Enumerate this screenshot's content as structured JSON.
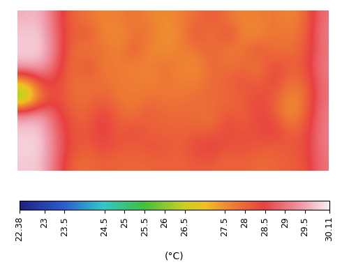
{
  "chart_data": {
    "type": "heatmap",
    "tick_labels": false,
    "cells": [
      [
        29.6,
        29.7,
        28.8,
        28.0,
        27.8,
        27.6,
        27.7,
        27.9,
        27.6,
        27.5,
        27.7,
        27.9,
        28.2,
        27.8,
        27.6,
        27.7,
        27.8,
        27.6,
        27.9,
        29.0
      ],
      [
        29.8,
        29.8,
        28.9,
        28.0,
        28.3,
        27.6,
        27.5,
        27.8,
        27.9,
        27.4,
        27.6,
        28.3,
        27.7,
        28.4,
        27.6,
        27.5,
        27.9,
        27.7,
        28.0,
        29.1
      ],
      [
        29.8,
        29.9,
        29.0,
        27.9,
        27.7,
        27.9,
        27.6,
        28.2,
        27.5,
        27.5,
        27.7,
        27.8,
        28.1,
        27.7,
        27.8,
        28.3,
        27.8,
        27.9,
        28.1,
        29.0
      ],
      [
        29.7,
        29.6,
        28.8,
        27.8,
        28.4,
        27.7,
        27.8,
        27.6,
        27.7,
        27.9,
        27.6,
        27.5,
        28.0,
        27.8,
        28.0,
        27.7,
        28.4,
        28.1,
        28.2,
        29.1
      ],
      [
        27.0,
        28.4,
        28.5,
        27.9,
        27.8,
        27.9,
        27.7,
        27.8,
        27.6,
        27.8,
        27.7,
        27.7,
        27.9,
        28.1,
        28.3,
        28.0,
        28.5,
        27.8,
        28.0,
        29.0
      ],
      [
        25.6,
        27.8,
        28.4,
        27.9,
        27.9,
        28.1,
        27.8,
        27.7,
        27.9,
        27.8,
        27.8,
        27.9,
        28.0,
        27.9,
        28.1,
        28.4,
        28.1,
        27.5,
        27.8,
        29.0
      ],
      [
        29.4,
        29.5,
        28.7,
        28.1,
        28.0,
        28.5,
        28.0,
        27.8,
        28.2,
        27.9,
        28.0,
        27.9,
        27.8,
        28.3,
        28.0,
        28.5,
        28.2,
        27.4,
        28.0,
        29.1
      ],
      [
        29.8,
        29.8,
        28.9,
        28.2,
        28.2,
        28.6,
        28.1,
        28.4,
        28.0,
        28.1,
        28.0,
        28.1,
        28.0,
        28.4,
        28.2,
        28.3,
        28.6,
        28.0,
        28.2,
        29.1
      ],
      [
        29.9,
        29.9,
        29.0,
        28.3,
        28.1,
        28.4,
        28.2,
        28.1,
        28.3,
        28.2,
        28.1,
        28.4,
        28.6,
        28.2,
        28.3,
        28.2,
        28.1,
        28.2,
        28.3,
        29.1
      ],
      [
        29.8,
        29.8,
        28.9,
        28.0,
        27.9,
        28.1,
        28.0,
        28.0,
        28.0,
        28.1,
        28.0,
        28.2,
        28.1,
        28.0,
        28.1,
        27.9,
        28.0,
        28.1,
        28.2,
        29.0
      ]
    ],
    "colorbar_range": [
      22.38,
      30.11
    ],
    "colorbar_ticks": [
      22.38,
      23,
      23.5,
      24.5,
      25,
      25.5,
      26,
      26.5,
      27.5,
      28,
      28.5,
      29,
      29.5,
      30.11
    ],
    "colorbar_label": "(°C)"
  }
}
